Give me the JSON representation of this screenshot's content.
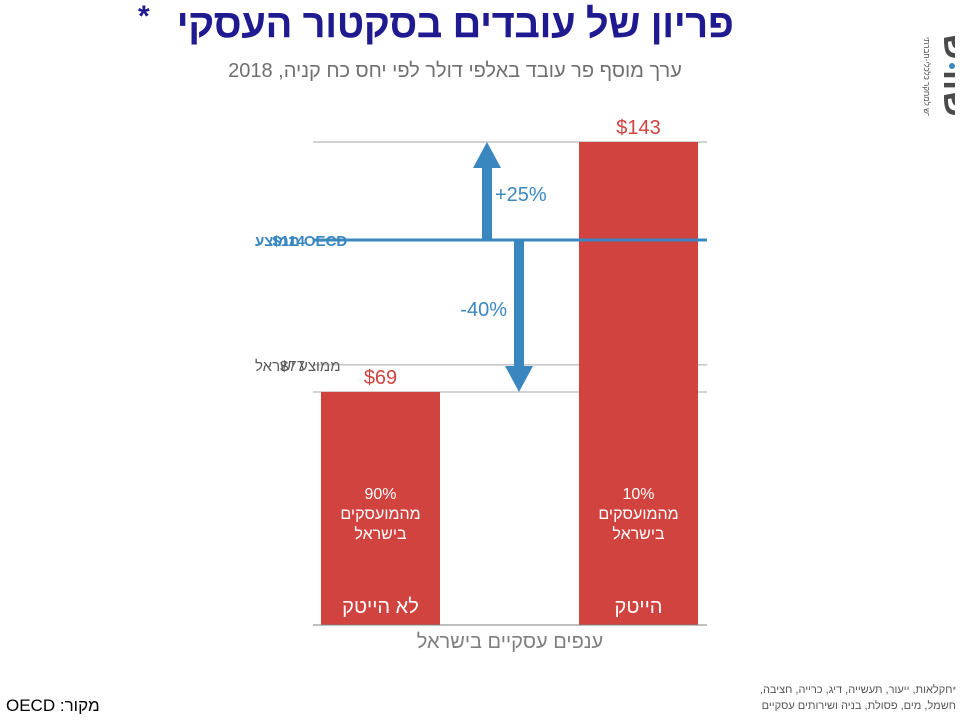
{
  "header": {
    "title": "פריון של עובדים בסקטור העסקי",
    "title_star": "*",
    "subtitle": "ערך מוסף פר עובד באלפי דולר לפי יחס כח קניה, 2018",
    "logo_word": "שורש",
    "logo_caption": "מוסד שורש למחקר כלכלי-חברתי"
  },
  "chart_data": {
    "type": "bar",
    "title": "פריון של עובדים בסקטור העסקי",
    "subtitle": "ערך מוסף פר עובד באלפי דולר לפי יחס כח קניה, 2018",
    "xlabel": "ענפים עסקיים בישראל",
    "categories": [
      "לא הייטק",
      "הייטק"
    ],
    "values": [
      69,
      143
    ],
    "value_labels": [
      "$69",
      "$143"
    ],
    "bar_inner_labels": [
      [
        "90%",
        "מהמועסקים",
        "בישראל"
      ],
      [
        "10%",
        "מהמועסקים",
        "בישראל"
      ]
    ],
    "ylim": [
      0,
      143
    ],
    "reference_lines": [
      {
        "name_text": "OECD ממוצע",
        "value": 114,
        "value_label": "$114",
        "color": "#3a87c0"
      },
      {
        "name_text": "ממוצע ישראל",
        "value": 77,
        "value_label": "$77",
        "color": "#5a5a5a"
      }
    ],
    "annotations": [
      {
        "text": "+25%",
        "from": 114,
        "to": 143,
        "direction": "up"
      },
      {
        "text": "-40%",
        "from": 114,
        "to": 69,
        "direction": "down"
      }
    ],
    "colors": {
      "bar": "#d0433e",
      "accent": "#3a87c0",
      "grid": "#a6a6a6"
    },
    "grid": false
  },
  "footer": {
    "source_label": "מקור:",
    "source_value": "OECD",
    "footnote_star": "*",
    "footnote_line1": "חקלאות, ייעור, תעשייה, דיג, כרייה, חציבה,",
    "footnote_line2": "חשמל, מים, פסולת, בניה ושירותים עסקיים"
  }
}
